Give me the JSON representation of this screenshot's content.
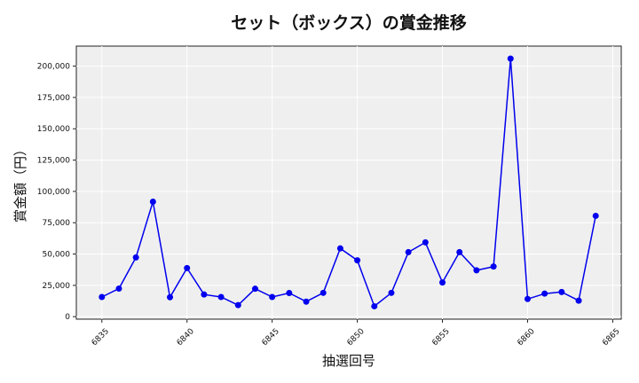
{
  "chart_data": {
    "type": "line",
    "title": "セット（ボックス）の賞金推移",
    "xlabel": "抽選回号",
    "ylabel": "賞金額（円）",
    "xlim": [
      6833.5,
      6865.5
    ],
    "ylim": [
      -2000,
      216000
    ],
    "x_ticks": [
      6835,
      6840,
      6845,
      6850,
      6855,
      6860,
      6865
    ],
    "y_ticks": [
      0,
      25000,
      50000,
      75000,
      100000,
      125000,
      150000,
      175000,
      200000
    ],
    "y_tick_labels": [
      "0",
      "25,000",
      "50,000",
      "75,000",
      "100,000",
      "125,000",
      "150,000",
      "175,000",
      "200,000"
    ],
    "grid": true,
    "series": [
      {
        "color": "#0000ee",
        "x": [
          6835,
          6836,
          6837,
          6838,
          6839,
          6840,
          6841,
          6842,
          6843,
          6844,
          6845,
          6846,
          6847,
          6848,
          6849,
          6850,
          6851,
          6852,
          6853,
          6854,
          6855,
          6856,
          6857,
          6858,
          6859,
          6860,
          6861,
          6862,
          6863,
          6864
        ],
        "y": [
          15700,
          22400,
          47300,
          91800,
          15500,
          38800,
          17700,
          15700,
          9200,
          22300,
          15700,
          18900,
          12000,
          19000,
          54500,
          45000,
          8300,
          19000,
          51500,
          59300,
          27300,
          51500,
          37000,
          40000,
          206000,
          14100,
          18400,
          19700,
          12800,
          80500
        ]
      }
    ]
  }
}
